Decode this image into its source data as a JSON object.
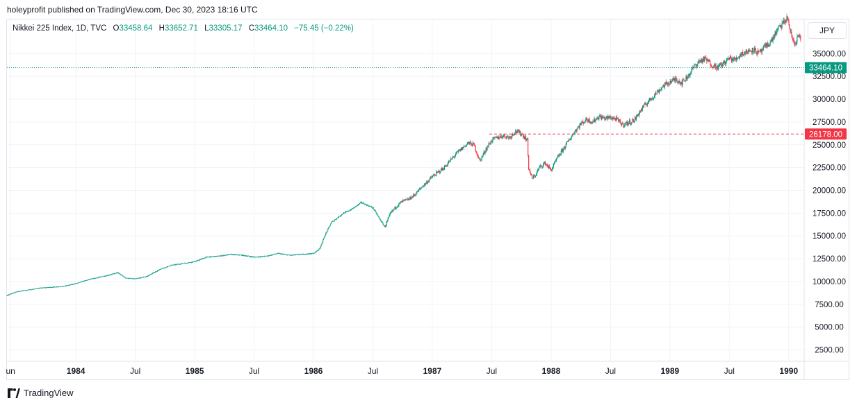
{
  "attribution": "holeyprofit published on TradingView.com, Dec 30, 2023 18:16 UTC",
  "legend": {
    "symbol": "Nikkei 225 Index, 1D, TVC",
    "open_label": "O",
    "open": "33458.64",
    "high_label": "H",
    "high": "33652.71",
    "low_label": "L",
    "low": "33305.17",
    "close_label": "C",
    "close": "33464.10",
    "change": "−75.45 (−0.22%)"
  },
  "currency": "JPY",
  "brand": "TradingView",
  "colors": {
    "up": "#089981",
    "down": "#f23645",
    "grid": "#f0f3fa",
    "text": "#131722"
  },
  "chart_data": {
    "type": "line",
    "title": "Nikkei 225 Index, 1D, TVC",
    "y_unit": "JPY",
    "ylim": [
      1250,
      38750
    ],
    "y_ticks": [
      2500,
      5000,
      7500,
      10000,
      12500,
      15000,
      17500,
      20000,
      22500,
      25000,
      27500,
      30000,
      32500,
      35000
    ],
    "y_tick_labels": [
      "2500.00",
      "5000.00",
      "7500.00",
      "10000.00",
      "12500.00",
      "15000.00",
      "17500.00",
      "20000.00",
      "22500.00",
      "25000.00",
      "27500.00",
      "30000.00",
      "32500.00",
      "35000.00"
    ],
    "x_range": [
      1983.42,
      1990.13
    ],
    "x_ticks": [
      {
        "t": 1983.45,
        "label": "un"
      },
      {
        "t": 1984.0,
        "label": "1984"
      },
      {
        "t": 1984.5,
        "label": "Jul"
      },
      {
        "t": 1985.0,
        "label": "1985"
      },
      {
        "t": 1985.5,
        "label": "Jul"
      },
      {
        "t": 1986.0,
        "label": "1986"
      },
      {
        "t": 1986.5,
        "label": "Jul"
      },
      {
        "t": 1987.0,
        "label": "1987"
      },
      {
        "t": 1987.5,
        "label": "Jul"
      },
      {
        "t": 1988.0,
        "label": "1988"
      },
      {
        "t": 1988.5,
        "label": "Jul"
      },
      {
        "t": 1989.0,
        "label": "1989"
      },
      {
        "t": 1989.5,
        "label": "Jul"
      },
      {
        "t": 1990.0,
        "label": "1990"
      }
    ],
    "series": [
      {
        "name": "Nikkei 225 Index close",
        "x": [
          1983.42,
          1983.5,
          1983.6,
          1983.7,
          1983.8,
          1983.9,
          1984.0,
          1984.1,
          1984.2,
          1984.3,
          1984.35,
          1984.42,
          1984.5,
          1984.6,
          1984.7,
          1984.8,
          1984.9,
          1985.0,
          1985.1,
          1985.2,
          1985.3,
          1985.4,
          1985.5,
          1985.6,
          1985.7,
          1985.8,
          1985.9,
          1986.0,
          1986.05,
          1986.1,
          1986.15,
          1986.2,
          1986.25,
          1986.3,
          1986.35,
          1986.4,
          1986.5,
          1986.55,
          1986.6,
          1986.65,
          1986.7,
          1986.75,
          1986.8,
          1986.85,
          1986.9,
          1987.0,
          1987.1,
          1987.2,
          1987.3,
          1987.35,
          1987.4,
          1987.45,
          1987.5,
          1987.55,
          1987.6,
          1987.65,
          1987.7,
          1987.75,
          1987.8,
          1987.81,
          1987.84,
          1987.87,
          1987.9,
          1987.95,
          1988.0,
          1988.05,
          1988.1,
          1988.15,
          1988.2,
          1988.25,
          1988.3,
          1988.35,
          1988.4,
          1988.45,
          1988.5,
          1988.55,
          1988.6,
          1988.65,
          1988.7,
          1988.75,
          1988.8,
          1988.85,
          1988.9,
          1988.95,
          1989.0,
          1989.05,
          1989.1,
          1989.15,
          1989.2,
          1989.25,
          1989.3,
          1989.35,
          1989.4,
          1989.45,
          1989.5,
          1989.55,
          1989.6,
          1989.65,
          1989.7,
          1989.75,
          1989.8,
          1989.85,
          1989.9,
          1989.95,
          1989.99,
          1990.02,
          1990.05,
          1990.08,
          1990.1
        ],
        "values": [
          8500,
          8900,
          9100,
          9300,
          9400,
          9500,
          9800,
          10200,
          10500,
          10800,
          11000,
          10400,
          10300,
          10600,
          11300,
          11800,
          12000,
          12200,
          12700,
          12800,
          13000,
          12900,
          12700,
          12800,
          13100,
          12900,
          13000,
          13100,
          13600,
          15200,
          16500,
          17000,
          17500,
          17800,
          18200,
          18700,
          18100,
          17000,
          16000,
          17500,
          18300,
          18800,
          19000,
          19500,
          20200,
          21500,
          22500,
          24000,
          25200,
          25000,
          23200,
          24500,
          25500,
          25800,
          26000,
          25800,
          26500,
          26200,
          25500,
          22500,
          21300,
          21700,
          22500,
          23000,
          22200,
          23500,
          24500,
          25500,
          26500,
          27300,
          27800,
          27500,
          28100,
          27900,
          28000,
          27800,
          27200,
          27400,
          27700,
          28700,
          29500,
          30200,
          30900,
          31500,
          31900,
          32200,
          31800,
          32500,
          33500,
          34200,
          34400,
          33800,
          33500,
          33900,
          34500,
          34300,
          35000,
          35200,
          35500,
          35000,
          35700,
          36300,
          37500,
          38300,
          38915,
          37000,
          36000,
          37000,
          36500
        ]
      }
    ],
    "current_price": 33464.1,
    "current_price_label": "33464.10",
    "reference_level": 26178.0,
    "reference_level_label": "26178.00",
    "reference_start_t": 1987.48
  }
}
